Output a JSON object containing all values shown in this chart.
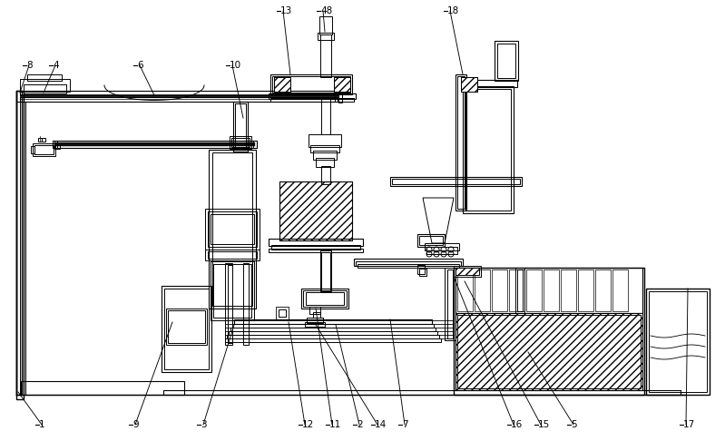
{
  "bg_color": "#ffffff",
  "line_color": "#000000",
  "figsize": [
    7.99,
    4.86
  ],
  "dpi": 100,
  "labels": [
    [
      "1",
      42,
      468,
      20,
      432
    ],
    [
      "2",
      392,
      468,
      370,
      358
    ],
    [
      "3",
      220,
      468,
      258,
      358
    ],
    [
      "4",
      57,
      72,
      48,
      102
    ],
    [
      "5",
      628,
      468,
      582,
      388
    ],
    [
      "6",
      150,
      72,
      170,
      105
    ],
    [
      "7",
      442,
      468,
      430,
      352
    ],
    [
      "8",
      28,
      72,
      22,
      102
    ],
    [
      "9",
      145,
      468,
      190,
      355
    ],
    [
      "10",
      252,
      72,
      268,
      130
    ],
    [
      "11",
      362,
      468,
      348,
      340
    ],
    [
      "12",
      332,
      468,
      318,
      355
    ],
    [
      "13",
      308,
      12,
      320,
      82
    ],
    [
      "14",
      412,
      468,
      348,
      358
    ],
    [
      "15",
      592,
      468,
      512,
      310
    ],
    [
      "16",
      562,
      468,
      500,
      305
    ],
    [
      "17",
      752,
      468,
      758,
      318
    ],
    [
      "18",
      492,
      12,
      510,
      82
    ],
    [
      "48",
      352,
      12,
      358,
      35
    ]
  ]
}
